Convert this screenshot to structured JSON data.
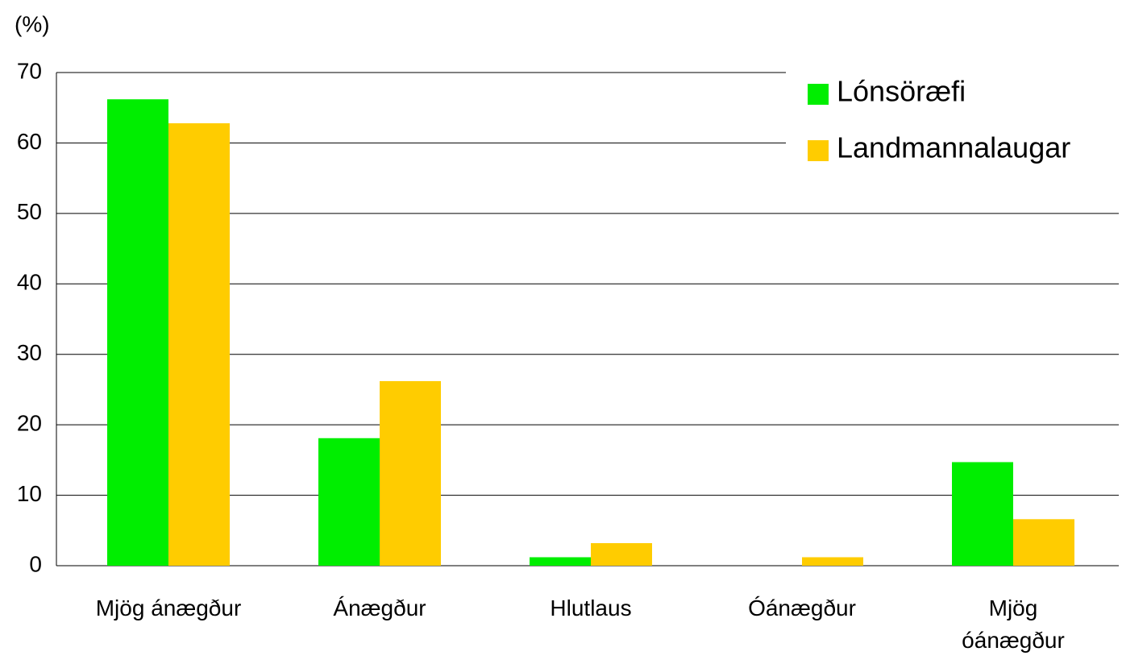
{
  "chart_data": {
    "type": "bar",
    "y_label": "(%)",
    "categories": [
      "Mjög ánægður",
      "Ánægður",
      "Hlutlaus",
      "Óánægður",
      "Mjög óánægður"
    ],
    "series": [
      {
        "name": "Lónsöræfi",
        "color": "#00ee00",
        "values": [
          66.2,
          18.1,
          1.2,
          0,
          14.7
        ]
      },
      {
        "name": "Landmannalaugar",
        "color": "#ffcc00",
        "values": [
          62.8,
          26.2,
          3.2,
          1.2,
          6.6
        ]
      }
    ],
    "ylim": [
      0,
      70
    ],
    "yticks": [
      0,
      10,
      20,
      30,
      40,
      50,
      60,
      70
    ],
    "grid": true,
    "legend": "top-right"
  }
}
